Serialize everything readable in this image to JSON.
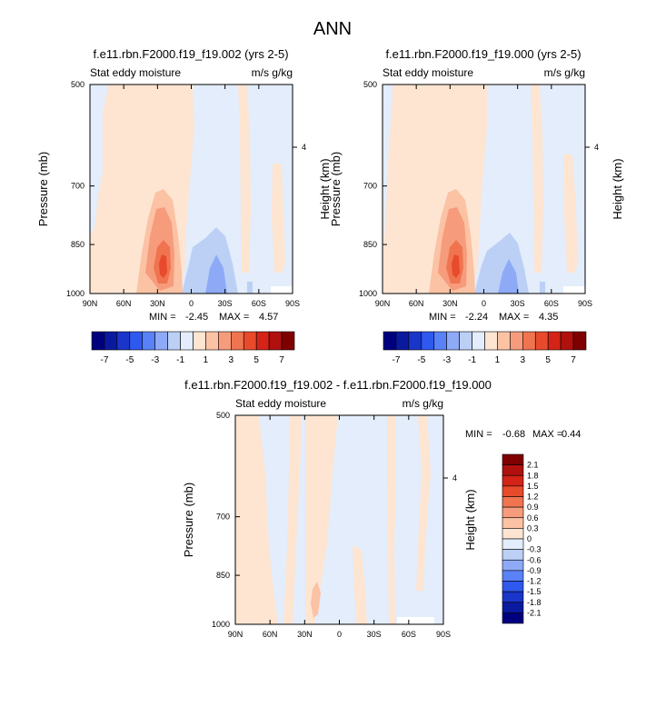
{
  "title": "ANN",
  "level_axis_label": "Pressure (mb)",
  "height_axis_label": "Height (km)",
  "height_tick": "4",
  "pressure_ticks": [
    "500",
    "700",
    "850",
    "1000"
  ],
  "lat_ticks": [
    "90N",
    "60N",
    "30N",
    "0",
    "30S",
    "60S",
    "90S"
  ],
  "colors": {
    "top_scale": [
      "#00007f",
      "#0a1a9e",
      "#1a35c9",
      "#2f58ef",
      "#5a82f7",
      "#8eaaf7",
      "#bcd0f6",
      "#e3edfb",
      "#fde5d2",
      "#fbc2a4",
      "#f69c7c",
      "#f07450",
      "#e84a2c",
      "#d32417",
      "#b0110f",
      "#7f0000"
    ],
    "diff_scale": [
      "#00007f",
      "#0a1a9e",
      "#1a35c9",
      "#2f58ef",
      "#5a82f7",
      "#8eaaf7",
      "#bcd0f6",
      "#e3edfb",
      "#fde5d2",
      "#fbc2a4",
      "#f69c7c",
      "#f07450",
      "#e84a2c",
      "#d32417",
      "#b0110f",
      "#7f0000"
    ]
  },
  "panels": [
    {
      "title": "f.e11.rbn.F2000.f19_f19.002 (yrs 2-5)",
      "left_label": "Stat eddy moisture",
      "right_label": "m/s g/kg",
      "min_label": "MIN =",
      "min_value": "-2.45",
      "max_label": "MAX =",
      "max_value": "4.57"
    },
    {
      "title": "f.e11.rbn.F2000.f19_f19.000 (yrs 2-5)",
      "left_label": "Stat eddy moisture",
      "right_label": "m/s g/kg",
      "min_label": "MIN =",
      "min_value": "-2.24",
      "max_label": "MAX =",
      "max_value": "4.35"
    },
    {
      "title": "f.e11.rbn.F2000.f19_f19.002 - f.e11.rbn.F2000.f19_f19.000",
      "left_label": "Stat eddy moisture",
      "right_label": "m/s g/kg",
      "min_label": "MIN =",
      "min_value": "-0.68",
      "max_label": "MAX =",
      "max_value": "0.44"
    }
  ],
  "colorbars": {
    "top_labels": [
      "-7",
      "-5",
      "-3",
      "-1",
      "1",
      "3",
      "5",
      "7"
    ],
    "diff_labels": [
      "2.1",
      "1.8",
      "1.5",
      "1.2",
      "0.9",
      "0.6",
      "0.3",
      "0",
      "-0.3",
      "-0.6",
      "-0.9",
      "-1.2",
      "-1.5",
      "-1.8",
      "-2.1"
    ]
  },
  "chart_data": [
    {
      "type": "heatmap",
      "title": "f.e11.rbn.F2000.f19_f19.002 (yrs 2-5)",
      "xlabel": "",
      "ylabel": "Pressure (mb)",
      "x_ticks": [
        "90N",
        "60N",
        "30N",
        "0",
        "30S",
        "60S",
        "90S"
      ],
      "y_ticks": [
        500,
        700,
        850,
        1000
      ],
      "ylim": [
        1000,
        500
      ],
      "colorbar_levels": [
        -7,
        -6,
        -5,
        -4,
        -3,
        -2,
        -1,
        0,
        1,
        2,
        3,
        4,
        5,
        6,
        7
      ],
      "min": -2.45,
      "max": 4.57,
      "features": [
        {
          "latitude": "25N",
          "pressure_range": [
            650,
            960
          ],
          "peak": 4.57,
          "sign": "positive"
        },
        {
          "latitude": "15S-35S",
          "pressure_range": [
            780,
            1000
          ],
          "peak": -2.45,
          "sign": "negative"
        }
      ]
    },
    {
      "type": "heatmap",
      "title": "f.e11.rbn.F2000.f19_f19.000 (yrs 2-5)",
      "xlabel": "",
      "ylabel": "Pressure (mb)",
      "x_ticks": [
        "90N",
        "60N",
        "30N",
        "0",
        "30S",
        "60S",
        "90S"
      ],
      "y_ticks": [
        500,
        700,
        850,
        1000
      ],
      "ylim": [
        1000,
        500
      ],
      "colorbar_levels": [
        -7,
        -6,
        -5,
        -4,
        -3,
        -2,
        -1,
        0,
        1,
        2,
        3,
        4,
        5,
        6,
        7
      ],
      "min": -2.24,
      "max": 4.35,
      "features": [
        {
          "latitude": "25N",
          "pressure_range": [
            650,
            960
          ],
          "peak": 4.35,
          "sign": "positive"
        },
        {
          "latitude": "15S-35S",
          "pressure_range": [
            780,
            1000
          ],
          "peak": -2.24,
          "sign": "negative"
        }
      ]
    },
    {
      "type": "heatmap",
      "title": "f.e11.rbn.F2000.f19_f19.002 - f.e11.rbn.F2000.f19_f19.000",
      "xlabel": "",
      "ylabel": "Pressure (mb)",
      "x_ticks": [
        "90N",
        "60N",
        "30N",
        "0",
        "30S",
        "60S",
        "90S"
      ],
      "y_ticks": [
        500,
        700,
        850,
        1000
      ],
      "ylim": [
        1000,
        500
      ],
      "colorbar_levels": [
        -2.1,
        -1.8,
        -1.5,
        -1.2,
        -0.9,
        -0.6,
        -0.3,
        0,
        0.3,
        0.6,
        0.9,
        1.2,
        1.5,
        1.8,
        2.1
      ],
      "min": -0.68,
      "max": 0.44
    }
  ]
}
